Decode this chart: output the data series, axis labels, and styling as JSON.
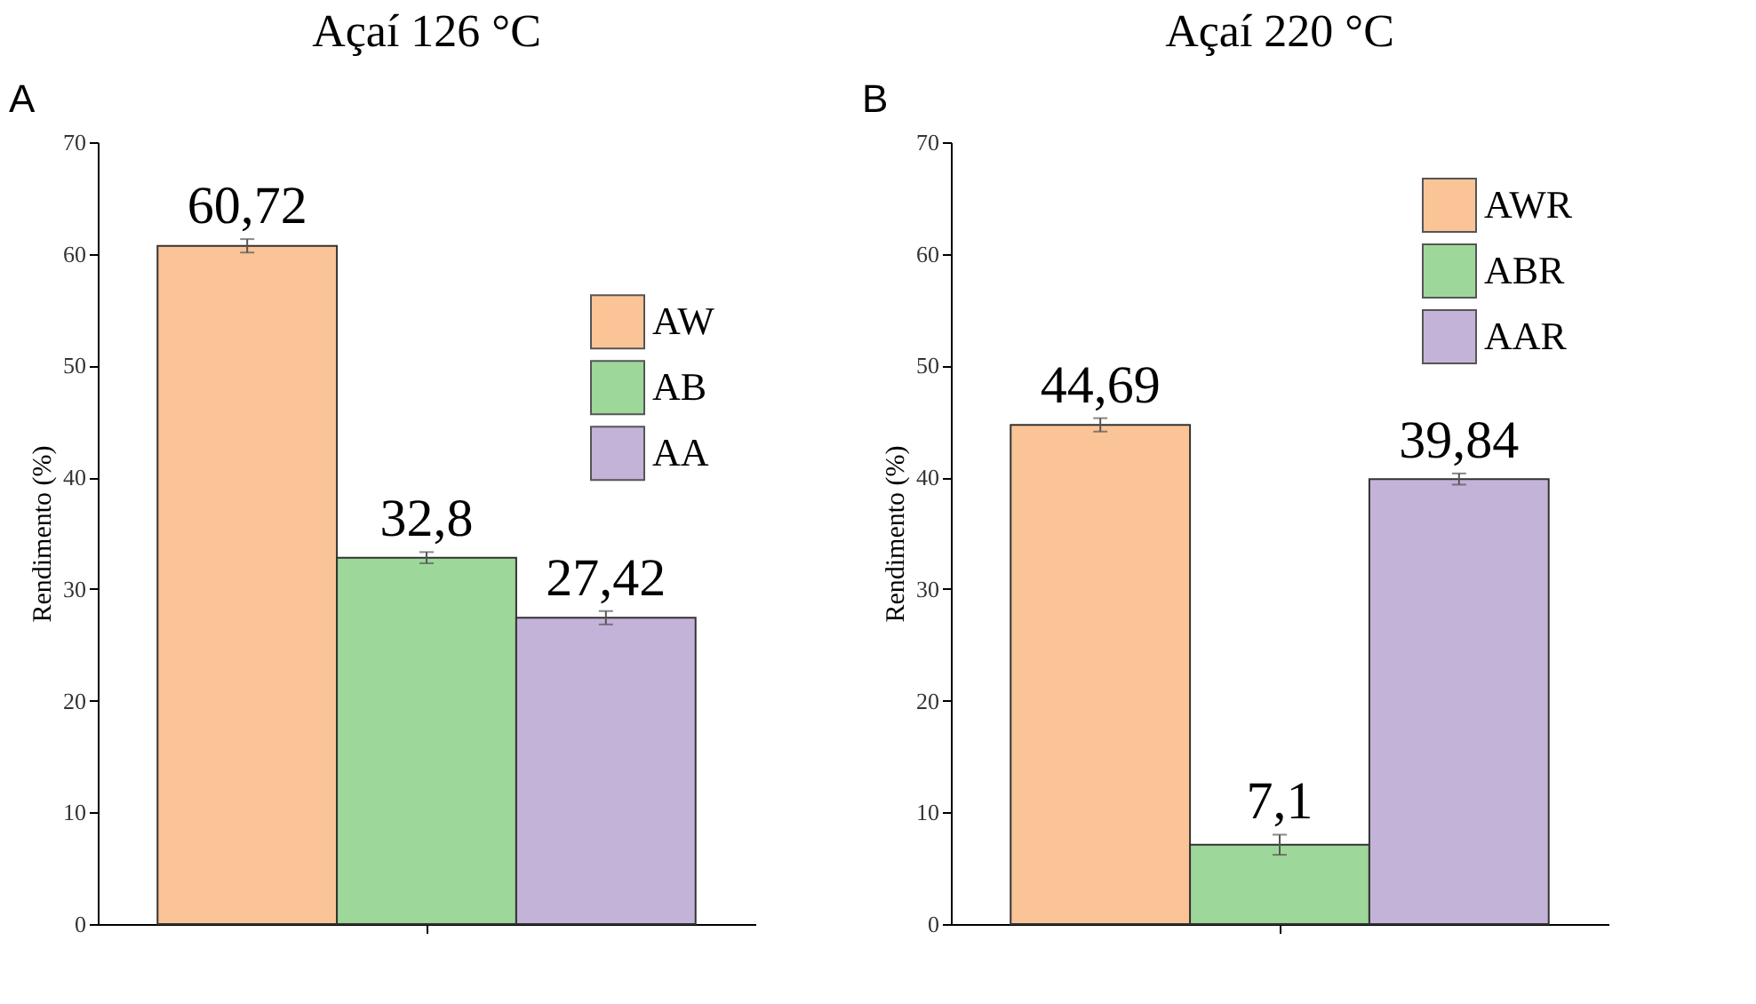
{
  "chart_data": [
    {
      "type": "bar",
      "title": "Açaí 126 °C",
      "ylabel": "Rendimento (%)",
      "annotations": [
        "A"
      ],
      "categories": [
        null
      ],
      "series": [
        {
          "name": "AW",
          "color": "#fac497",
          "values": [
            60.72
          ],
          "errors": [
            0.6
          ],
          "value_labels": [
            "60,72"
          ]
        },
        {
          "name": "AB",
          "color": "#9ed79a",
          "values": [
            32.8
          ],
          "errors": [
            0.5
          ],
          "value_labels": [
            "32,8"
          ]
        },
        {
          "name": "AA",
          "color": "#c3b3d8",
          "values": [
            27.42
          ],
          "errors": [
            0.6
          ],
          "value_labels": [
            "27,42"
          ]
        }
      ],
      "ylim": [
        0,
        70
      ],
      "yticks": [
        0,
        10,
        20,
        30,
        40,
        50,
        60,
        70
      ],
      "grid": false,
      "legend": "right",
      "tick_labels": "y"
    },
    {
      "type": "bar",
      "title": "Açaí 220 °C",
      "ylabel": "Rendimento (%)",
      "annotations": [
        "B"
      ],
      "categories": [
        null
      ],
      "series": [
        {
          "name": "AWR",
          "color": "#fac497",
          "values": [
            44.69
          ],
          "errors": [
            0.6
          ],
          "value_labels": [
            "44,69"
          ]
        },
        {
          "name": "ABR",
          "color": "#9ed79a",
          "values": [
            7.1
          ],
          "errors": [
            0.9
          ],
          "value_labels": [
            "7,1"
          ]
        },
        {
          "name": "AAR",
          "color": "#c3b3d8",
          "values": [
            39.84
          ],
          "errors": [
            0.5
          ],
          "value_labels": [
            "39,84"
          ]
        }
      ],
      "ylim": [
        0,
        70
      ],
      "yticks": [
        0,
        10,
        20,
        30,
        40,
        50,
        60,
        70
      ],
      "grid": false,
      "legend": "top right",
      "tick_labels": "y"
    }
  ]
}
